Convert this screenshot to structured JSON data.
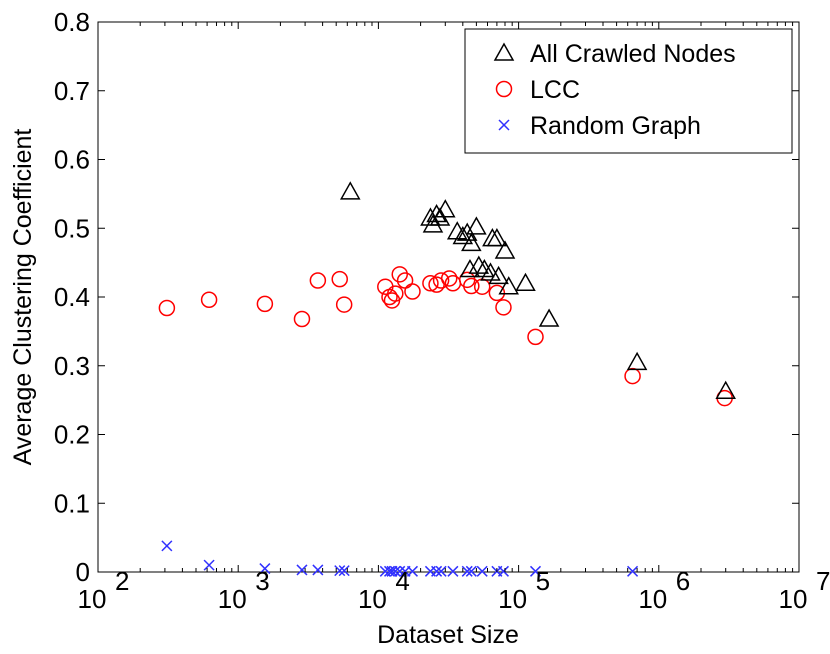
{
  "chart_data": {
    "type": "scatter",
    "title": "",
    "xlabel": "Dataset Size",
    "ylabel": "Average Clustering Coefficient",
    "xscale": "log",
    "xlim": [
      100,
      10000000
    ],
    "ylim": [
      0,
      0.8
    ],
    "x_ticks": [
      100,
      1000,
      10000,
      100000,
      1000000,
      10000000
    ],
    "x_tick_labels": [
      {
        "base": "10",
        "exp": "2"
      },
      {
        "base": "10",
        "exp": "3"
      },
      {
        "base": "10",
        "exp": "4"
      },
      {
        "base": "10",
        "exp": "5"
      },
      {
        "base": "10",
        "exp": "6"
      },
      {
        "base": "10",
        "exp": "7"
      }
    ],
    "y_ticks": [
      0,
      0.1,
      0.2,
      0.3,
      0.4,
      0.5,
      0.6,
      0.7,
      0.8
    ],
    "y_tick_labels": [
      "0",
      "0.1",
      "0.2",
      "0.3",
      "0.4",
      "0.5",
      "0.6",
      "0.7",
      "0.8"
    ],
    "grid": false,
    "legend_position": "top-right",
    "colors": {
      "all_crawled": "#000000",
      "lcc": "#ff0000",
      "random": "#3030ff"
    },
    "series": [
      {
        "name": "All Crawled Nodes",
        "marker": "triangle",
        "x": [
          6300,
          23500,
          24500,
          26000,
          27500,
          30000,
          36500,
          40000,
          43000,
          46000,
          50000,
          65000,
          70000,
          80000,
          45000,
          52000,
          57000,
          63000,
          72000,
          85000,
          112000,
          165000,
          700000,
          3000000
        ],
        "y": [
          0.553,
          0.515,
          0.505,
          0.52,
          0.515,
          0.527,
          0.495,
          0.488,
          0.493,
          0.478,
          0.502,
          0.485,
          0.485,
          0.467,
          0.44,
          0.445,
          0.44,
          0.435,
          0.43,
          0.415,
          0.42,
          0.368,
          0.305,
          0.263
        ]
      },
      {
        "name": "LCC",
        "marker": "circle",
        "x": [
          310,
          620,
          1550,
          2850,
          3700,
          5300,
          5700,
          11200,
          12000,
          12500,
          13200,
          14200,
          15500,
          17500,
          23500,
          26000,
          28000,
          32000,
          34000,
          43000,
          46000,
          55000,
          70000,
          78000,
          132000,
          650000,
          2950000
        ],
        "y": [
          0.384,
          0.396,
          0.39,
          0.368,
          0.424,
          0.426,
          0.389,
          0.415,
          0.4,
          0.395,
          0.405,
          0.433,
          0.424,
          0.408,
          0.42,
          0.418,
          0.424,
          0.427,
          0.42,
          0.425,
          0.416,
          0.415,
          0.406,
          0.385,
          0.342,
          0.285,
          0.253
        ]
      },
      {
        "name": "Random Graph",
        "marker": "x",
        "x": [
          310,
          620,
          1550,
          2850,
          3700,
          5300,
          5700,
          11200,
          12000,
          12500,
          13200,
          14200,
          15500,
          17500,
          23500,
          26000,
          28000,
          34000,
          43000,
          46000,
          55000,
          70000,
          78000,
          132000,
          650000
        ],
        "y": [
          0.038,
          0.01,
          0.005,
          0.003,
          0.003,
          0.002,
          0.002,
          0.001,
          0.001,
          0.001,
          0.001,
          0.001,
          0.001,
          0.001,
          0.001,
          0.001,
          0.001,
          0.001,
          0.001,
          0.001,
          0.001,
          0.001,
          0.001,
          0.001,
          0.001
        ]
      }
    ]
  }
}
